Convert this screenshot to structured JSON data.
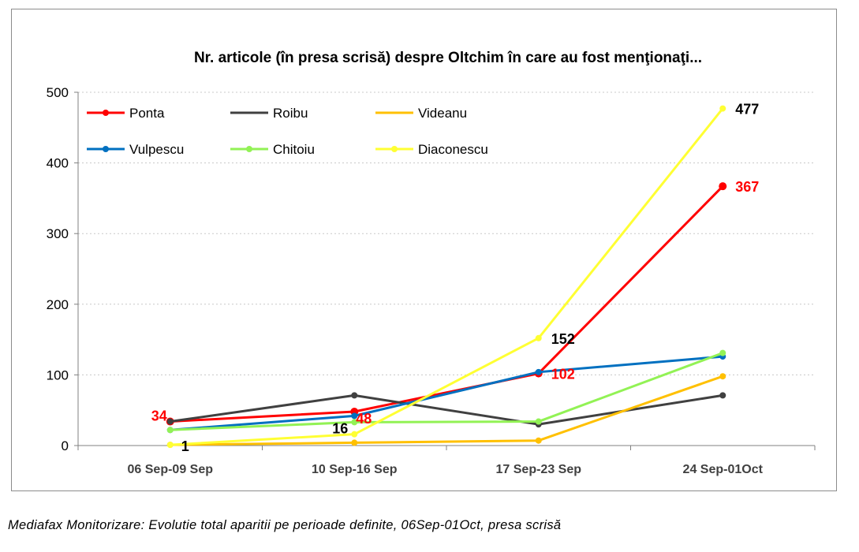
{
  "chart_data": {
    "type": "line",
    "title": "Nr. articole (în presa scrisă)  despre Oltchim în care au fost menţionaţi...",
    "categories": [
      "06 Sep-09 Sep",
      "10 Sep-16 Sep",
      "17 Sep-23 Sep",
      "24 Sep-01Oct"
    ],
    "ylim": [
      0,
      500
    ],
    "yticks": [
      0,
      100,
      200,
      300,
      400,
      500
    ],
    "grid": true,
    "legend_position": "top-left",
    "series": [
      {
        "name": "Ponta",
        "color": "#ff0000",
        "values": [
          34,
          48,
          102,
          367
        ]
      },
      {
        "name": "Roibu",
        "color": "#404040",
        "values": [
          34,
          71,
          30,
          71
        ]
      },
      {
        "name": "Videanu",
        "color": "#ffc000",
        "values": [
          1,
          4,
          7,
          98
        ]
      },
      {
        "name": "Vulpescu",
        "color": "#0070c0",
        "values": [
          22,
          42,
          104,
          126
        ]
      },
      {
        "name": "Chitoiu",
        "color": "#92f255",
        "values": [
          22,
          33,
          34,
          131
        ]
      },
      {
        "name": "Diaconescu",
        "color": "#ffff33",
        "values": [
          1,
          16,
          152,
          477
        ]
      }
    ],
    "data_labels": [
      {
        "text": "34",
        "series": "Ponta",
        "category": "06 Sep-09 Sep",
        "value": 34,
        "color": "#ff0000",
        "side": "left"
      },
      {
        "text": "1",
        "series": "Diaconescu",
        "category": "06 Sep-09 Sep",
        "value": 1,
        "color": "#000000",
        "side": "right"
      },
      {
        "text": "16",
        "series": "Diaconescu",
        "category": "10 Sep-16 Sep",
        "value": 16,
        "color": "#000000",
        "side": "above-left"
      },
      {
        "text": "48",
        "series": "Ponta",
        "category": "10 Sep-16 Sep",
        "value": 48,
        "color": "#ff0000",
        "side": "below"
      },
      {
        "text": "152",
        "series": "Diaconescu",
        "category": "17 Sep-23 Sep",
        "value": 152,
        "color": "#000000",
        "side": "right"
      },
      {
        "text": "102",
        "series": "Ponta",
        "category": "17 Sep-23 Sep",
        "value": 102,
        "color": "#ff0000",
        "side": "right"
      },
      {
        "text": "477",
        "series": "Diaconescu",
        "category": "24 Sep-01Oct",
        "value": 477,
        "color": "#000000",
        "side": "right"
      },
      {
        "text": "367",
        "series": "Ponta",
        "category": "24 Sep-01Oct",
        "value": 367,
        "color": "#ff0000",
        "side": "right"
      }
    ]
  },
  "caption": "Mediafax Monitorizare: Evolutie total aparitii pe perioade definite, 06Sep-01Oct, presa scrisă"
}
